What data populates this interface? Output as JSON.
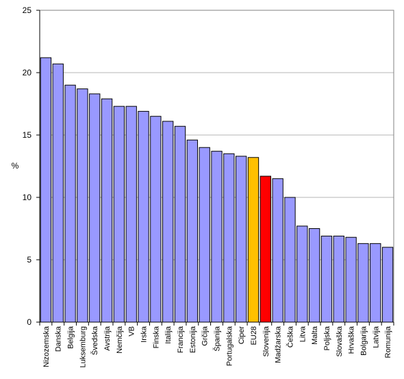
{
  "chart_data": {
    "type": "bar",
    "ylabel": "%",
    "ylim": [
      0,
      25
    ],
    "yticks": [
      0,
      5,
      10,
      15,
      20,
      25
    ],
    "grid": true,
    "categories": [
      "Nizozemska",
      "Danska",
      "Belgija",
      "Luksemburg",
      "Švedska",
      "Avstrija",
      "Nemčija",
      "VB",
      "Irska",
      "Finska",
      "Italija",
      "Francija",
      "Estonija",
      "Grčija",
      "Španija",
      "Portugalska",
      "Ciper",
      "EU28",
      "Slovenija",
      "Madžarska",
      "Češka",
      "Litva",
      "Malta",
      "Poljska",
      "Slovaška",
      "Hrvaška",
      "Bolgarija",
      "Latvija",
      "Romunija"
    ],
    "values": [
      21.2,
      20.7,
      19.0,
      18.7,
      18.3,
      17.9,
      17.3,
      17.3,
      16.9,
      16.5,
      16.1,
      15.7,
      14.6,
      14.0,
      13.7,
      13.5,
      13.3,
      13.2,
      11.7,
      11.5,
      10.0,
      7.7,
      7.5,
      6.9,
      6.9,
      6.8,
      6.3,
      6.3,
      6.0
    ],
    "colors": {
      "default": "#9999ff",
      "EU28": "#ffc000",
      "Slovenija": "#ff0000",
      "gridline": "#b4b4b4",
      "bar_stroke": "#000000"
    }
  }
}
